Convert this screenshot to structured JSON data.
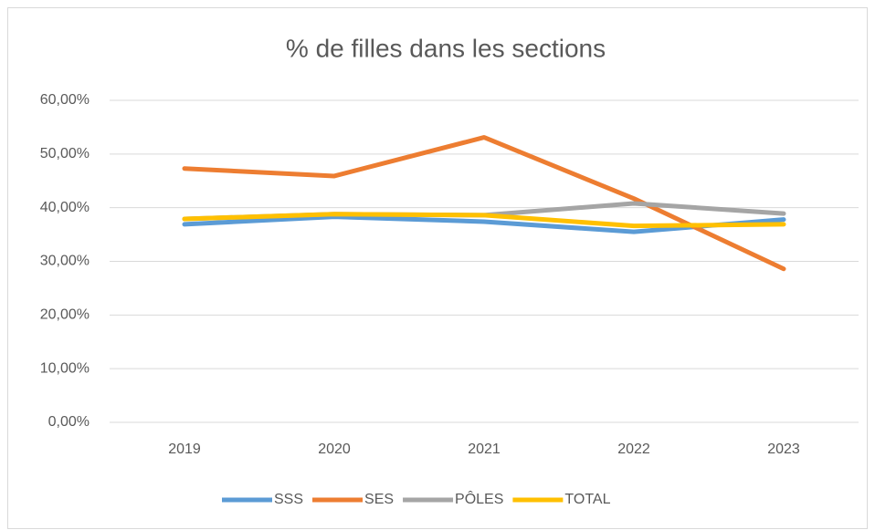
{
  "chart_data": {
    "type": "line",
    "title": "% de filles dans les sections",
    "categories": [
      "2019",
      "2020",
      "2021",
      "2022",
      "2023"
    ],
    "series": [
      {
        "name": "SSS",
        "color": "#5b9bd5",
        "values": [
          36.9,
          38.3,
          37.4,
          35.5,
          37.8
        ]
      },
      {
        "name": "SES",
        "color": "#ed7d31",
        "values": [
          47.3,
          45.9,
          53.1,
          41.7,
          28.6
        ]
      },
      {
        "name": "PÔLES",
        "color": "#a5a5a5",
        "values": [
          37.9,
          38.8,
          38.6,
          40.8,
          38.9
        ]
      },
      {
        "name": "TOTAL",
        "color": "#ffc000",
        "values": [
          37.9,
          38.8,
          38.6,
          36.6,
          36.9
        ]
      }
    ],
    "ylim": [
      0,
      60
    ],
    "yticks": [
      {
        "value": 0,
        "label": "0,00%"
      },
      {
        "value": 10,
        "label": "10,00%"
      },
      {
        "value": 20,
        "label": "20,00%"
      },
      {
        "value": 30,
        "label": "30,00%"
      },
      {
        "value": 40,
        "label": "40,00%"
      },
      {
        "value": 50,
        "label": "50,00%"
      },
      {
        "value": 60,
        "label": "60,00%"
      }
    ],
    "grid": true,
    "legend": "bottom"
  }
}
